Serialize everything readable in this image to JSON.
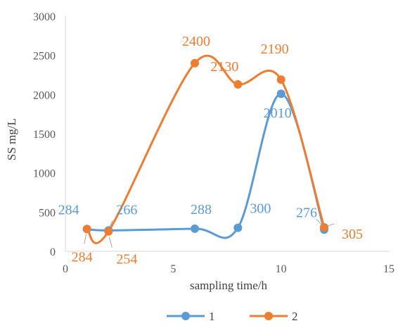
{
  "chart_data": {
    "type": "line",
    "smooth": true,
    "xlabel": "sampling time/h",
    "ylabel": "SS mg/L",
    "xlim": [
      0,
      15
    ],
    "ylim": [
      0,
      3000
    ],
    "xticks": [
      "0",
      "5",
      "10",
      "15"
    ],
    "yticks": [
      "0",
      "500",
      "1000",
      "1500",
      "2000",
      "2500",
      "3000"
    ],
    "grid": false,
    "legend_position": "bottom",
    "series": [
      {
        "name": "1",
        "color": "#5b9bd5",
        "x": [
          1,
          2,
          6,
          8,
          10,
          12
        ],
        "y": [
          284,
          266,
          288,
          300,
          2010,
          276
        ],
        "labels": [
          "284",
          "266",
          "288",
          "300",
          "2010",
          "276"
        ]
      },
      {
        "name": "2",
        "color": "#ed7d31",
        "x": [
          1,
          2,
          6,
          8,
          10,
          12
        ],
        "y": [
          284,
          254,
          2400,
          2130,
          2190,
          305
        ],
        "labels": [
          "284",
          "254",
          "2400",
          "2130",
          "2190",
          "305"
        ]
      }
    ]
  }
}
